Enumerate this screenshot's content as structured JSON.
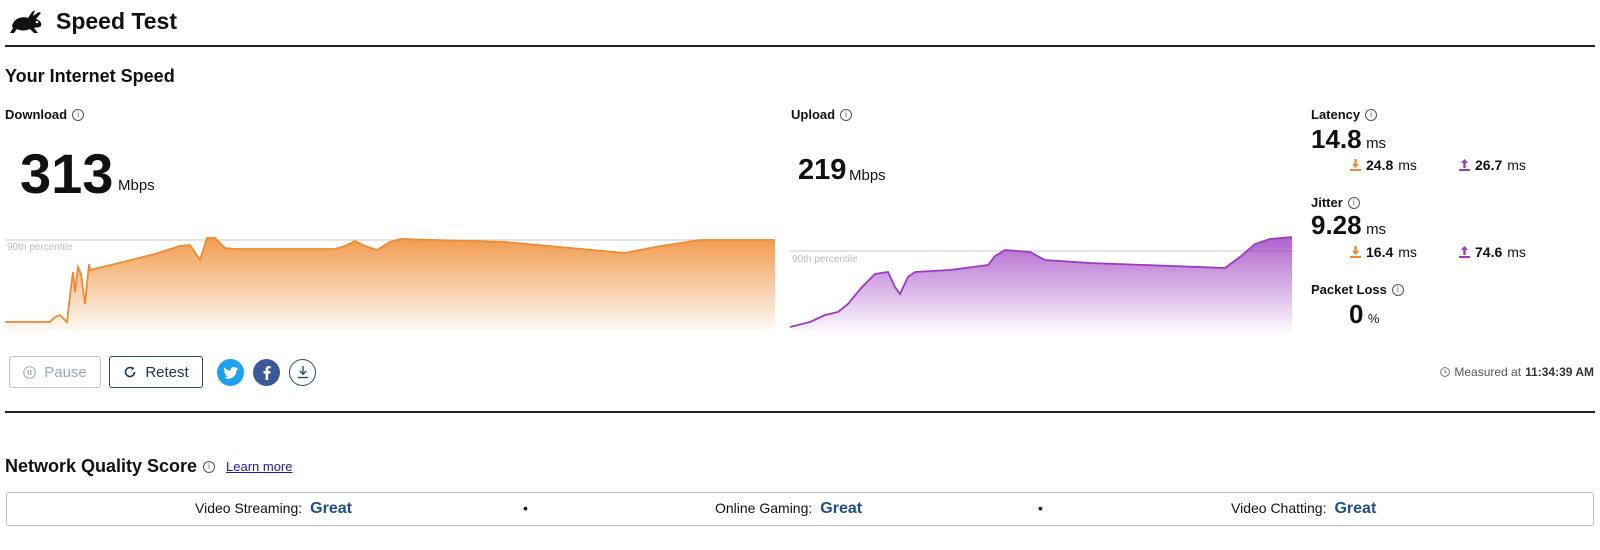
{
  "app": {
    "title": "Speed Test",
    "logo_icon": "rabbit-icon"
  },
  "speed_section": {
    "title": "Your Internet Speed"
  },
  "download": {
    "label": "Download",
    "value": "313",
    "unit": "Mbps",
    "percentile_label": "90th percentile",
    "color": "#ee8a30"
  },
  "upload": {
    "label": "Upload",
    "value": "219",
    "unit": "Mbps",
    "percentile_label": "90th percentile",
    "color": "#9b3bc0"
  },
  "latency": {
    "label": "Latency",
    "value": "14.8",
    "unit": "ms",
    "download_value": "24.8",
    "upload_value": "26.7",
    "sub_unit": "ms"
  },
  "jitter": {
    "label": "Jitter",
    "value": "9.28",
    "unit": "ms",
    "download_value": "16.4",
    "upload_value": "74.6",
    "sub_unit": "ms"
  },
  "packet_loss": {
    "label": "Packet Loss",
    "value": "0",
    "unit": "%"
  },
  "controls": {
    "pause_label": "Pause",
    "retest_label": "Retest",
    "twitter_icon": "twitter-icon",
    "facebook_icon": "facebook-icon",
    "download_icon": "download-icon"
  },
  "measured": {
    "prefix": "Measured at",
    "time": "11:34:39 AM"
  },
  "network_quality": {
    "title": "Network Quality Score",
    "learn_more": "Learn more",
    "items": [
      {
        "label": "Video Streaming:",
        "value": "Great"
      },
      {
        "label": "Online Gaming:",
        "value": "Great"
      },
      {
        "label": "Video Chatting:",
        "value": "Great"
      }
    ],
    "separator": "•"
  },
  "colors": {
    "accent_download": "#ee8a30",
    "accent_upload": "#9b3bc0",
    "quality_value": "#1f4e8c",
    "twitter": "#1da1f2",
    "facebook": "#3b5998"
  }
}
